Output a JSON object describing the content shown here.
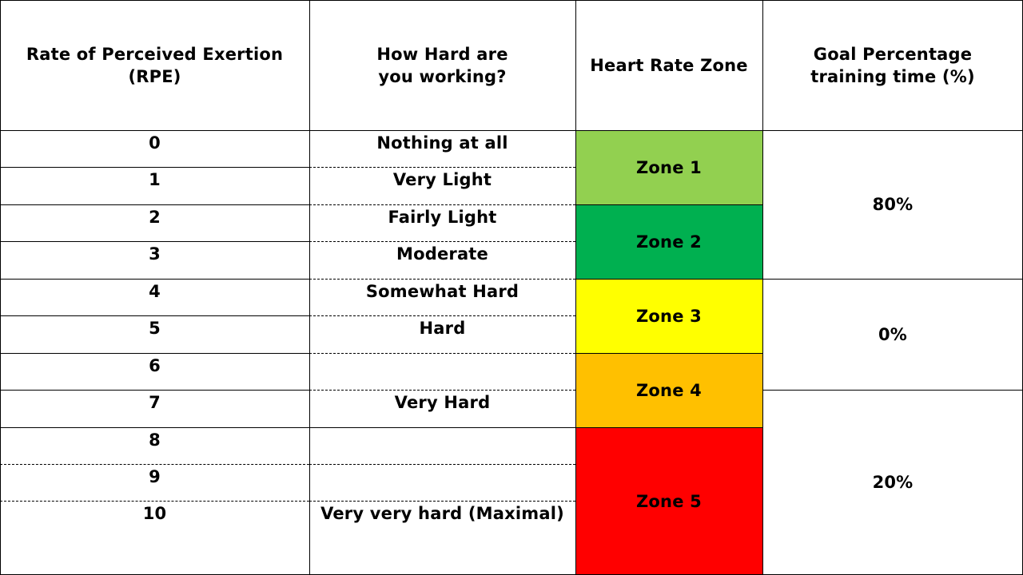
{
  "headers": {
    "rpe": "Rate of Perceived Exertion (RPE)",
    "how_hard": "How Hard are you working?",
    "zone": "Heart Rate Zone",
    "goal": "Goal Percentage training time (%)"
  },
  "rpe_values": [
    "0",
    "1",
    "2",
    "3",
    "4",
    "5",
    "6",
    "7",
    "8",
    "9",
    "10"
  ],
  "descriptions": {
    "r0": "Nothing at all",
    "r1": "Very Light",
    "r2": "Fairly Light",
    "r3": "Moderate",
    "r4": "Somewhat Hard",
    "r5": "Hard",
    "r7": "Very Hard",
    "r10": "Very very hard (Maximal)"
  },
  "zones": [
    {
      "label": "Zone 1",
      "color": "#92d050"
    },
    {
      "label": "Zone 2",
      "color": "#00b050"
    },
    {
      "label": "Zone 3",
      "color": "#ffff00"
    },
    {
      "label": "Zone 4",
      "color": "#ffc000"
    },
    {
      "label": "Zone 5",
      "color": "#ff0000"
    }
  ],
  "goals": [
    "80%",
    "0%",
    "20%"
  ]
}
